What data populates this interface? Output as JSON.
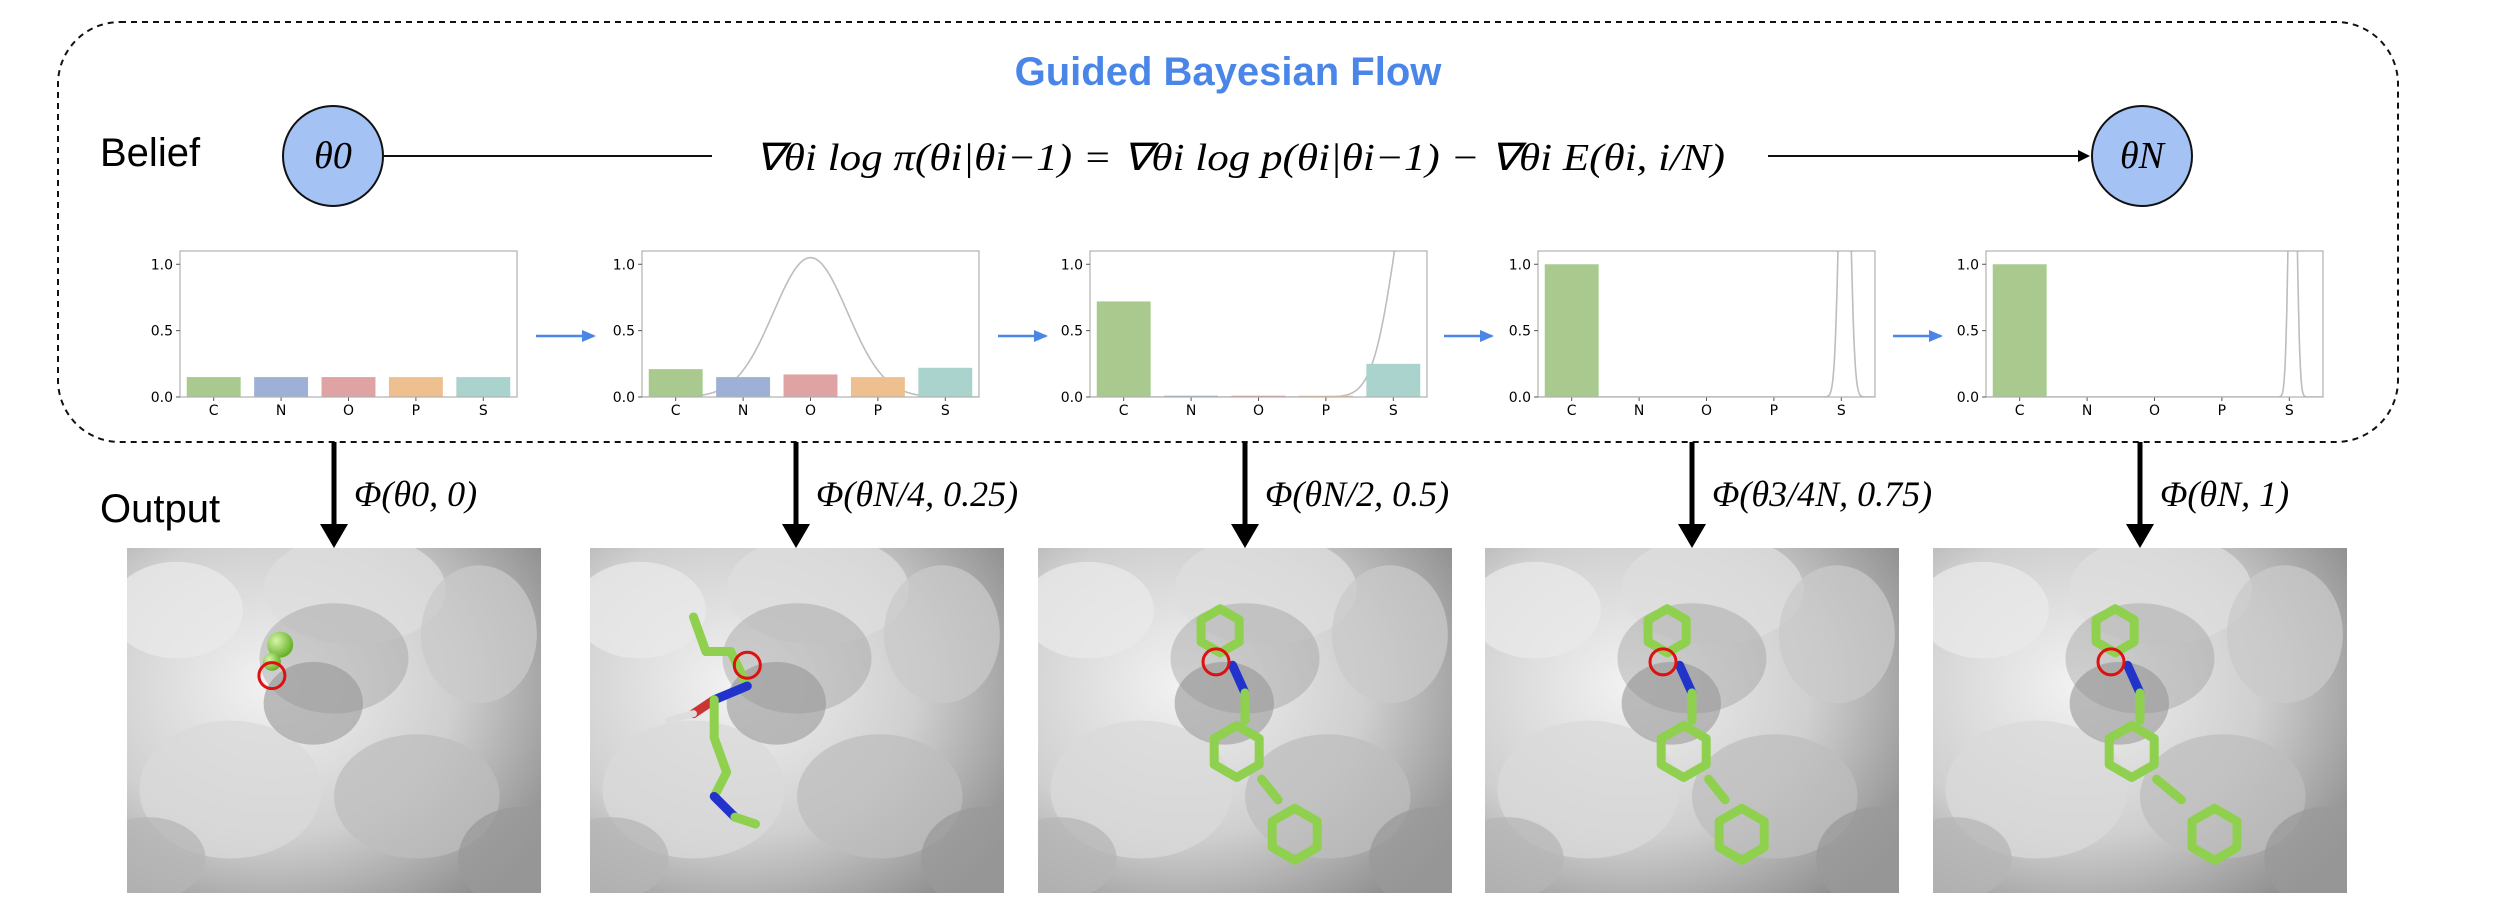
{
  "header": {
    "title": "Guided Bayesian Flow"
  },
  "labels": {
    "belief": "Belief",
    "output": "Output"
  },
  "nodes": {
    "start": "θ0",
    "end": "θN"
  },
  "equation": "∇θi log π(θi|θi−1) = ∇θi log p(θi|θi−1) − ∇θi E(θi, i/N)",
  "colors": {
    "title": "#4a86e8",
    "node_fill": "#a4c2f4",
    "arrow_blue": "#4a86e8",
    "carbon_green": "#8fd14f",
    "nitrogen_blue": "#2233cc",
    "oxygen_red": "#cc3333",
    "marker_red": "#dd1111"
  },
  "chart_data": [
    {
      "type": "bar",
      "categories": [
        "C",
        "N",
        "O",
        "P",
        "S"
      ],
      "values": [
        0.15,
        0.15,
        0.15,
        0.15,
        0.15
      ],
      "ylim": [
        0,
        1.1
      ],
      "yticks": [
        "0.0",
        "0.5",
        "1.0"
      ],
      "bar_colors": [
        "#a9c98f",
        "#9fb0d6",
        "#dfa3a3",
        "#efc08f",
        "#a9d3cc"
      ],
      "curve": null
    },
    {
      "type": "bar",
      "categories": [
        "C",
        "N",
        "O",
        "P",
        "S"
      ],
      "values": [
        0.21,
        0.15,
        0.17,
        0.15,
        0.22
      ],
      "ylim": [
        0,
        1.1
      ],
      "yticks": [
        "0.0",
        "0.5",
        "1.0"
      ],
      "bar_colors": [
        "#a9c98f",
        "#9fb0d6",
        "#dfa3a3",
        "#efc08f",
        "#a9d3cc"
      ],
      "curve": {
        "center": 2.5,
        "width": 0.55,
        "peak": 1.05
      }
    },
    {
      "type": "bar",
      "categories": [
        "C",
        "N",
        "O",
        "P",
        "S"
      ],
      "values": [
        0.72,
        0.01,
        0.01,
        0.01,
        0.25
      ],
      "ylim": [
        0,
        1.1
      ],
      "yticks": [
        "0.0",
        "0.5",
        "1.0"
      ],
      "bar_colors": [
        "#a9c98f",
        "#9fb0d6",
        "#dfa3a3",
        "#efc08f",
        "#a9d3cc"
      ],
      "curve": {
        "center": 4.9,
        "width": 0.35,
        "peak": 2.0
      }
    },
    {
      "type": "bar",
      "categories": [
        "C",
        "N",
        "O",
        "P",
        "S"
      ],
      "values": [
        1.0,
        0.0,
        0.0,
        0.0,
        0.0
      ],
      "ylim": [
        0,
        1.1
      ],
      "yticks": [
        "0.0",
        "0.5",
        "1.0"
      ],
      "bar_colors": [
        "#a9c98f",
        "#9fb0d6",
        "#dfa3a3",
        "#efc08f",
        "#a9d3cc"
      ],
      "curve": {
        "center": 4.55,
        "width": 0.07,
        "peak": 3.0
      }
    },
    {
      "type": "bar",
      "categories": [
        "C",
        "N",
        "O",
        "P",
        "S"
      ],
      "values": [
        1.0,
        0.0,
        0.0,
        0.0,
        0.0
      ],
      "ylim": [
        0,
        1.1
      ],
      "yticks": [
        "0.0",
        "0.5",
        "1.0"
      ],
      "bar_colors": [
        "#a9c98f",
        "#9fb0d6",
        "#dfa3a3",
        "#efc08f",
        "#a9d3cc"
      ],
      "curve": {
        "center": 4.55,
        "width": 0.05,
        "peak": 3.0
      }
    }
  ],
  "outputs": [
    {
      "label": "Φ(θ0, 0)",
      "stage": "atom"
    },
    {
      "label": "Φ(θN/4, 0.25)",
      "stage": "chain"
    },
    {
      "label": "Φ(θN/2, 0.5)",
      "stage": "biphenyl"
    },
    {
      "label": "Φ(θ3/4N, 0.75)",
      "stage": "biphenyl"
    },
    {
      "label": "Φ(θN, 1)",
      "stage": "final"
    }
  ]
}
